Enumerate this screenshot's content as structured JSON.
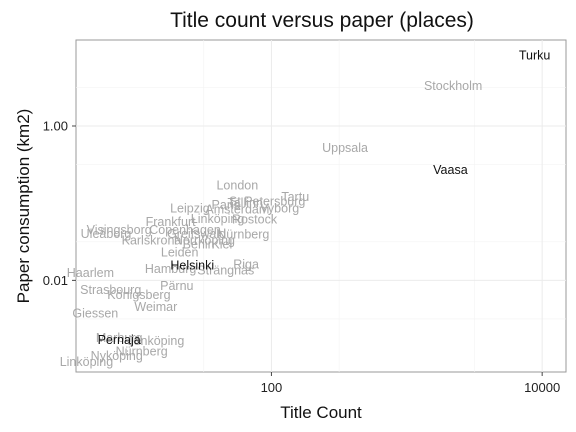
{
  "chart_data": {
    "type": "scatter",
    "title": "Title count versus paper (places)",
    "xlabel": "Title Count",
    "ylabel": "Paper consumption (km2)",
    "x_scale": "log10",
    "y_scale": "log10",
    "xlim": [
      3.6,
      15000
    ],
    "ylim": [
      0.00065,
      13
    ],
    "x_ticks": [
      {
        "value": 100,
        "label": "100"
      },
      {
        "value": 10000,
        "label": "10000"
      }
    ],
    "y_ticks": [
      {
        "value": 0.01,
        "label": "0.01"
      },
      {
        "value": 1,
        "label": "1.00"
      }
    ],
    "grid": true,
    "highlight_color": "#111111",
    "muted_color": "#a8a8a8",
    "points": [
      {
        "label": "Turku",
        "x": 8800,
        "y": 8.2,
        "highlight": true
      },
      {
        "label": "Stockholm",
        "x": 2200,
        "y": 3.3,
        "highlight": false
      },
      {
        "label": "Uppsala",
        "x": 350,
        "y": 0.52,
        "highlight": false
      },
      {
        "label": "Vaasa",
        "x": 2100,
        "y": 0.27,
        "highlight": true
      },
      {
        "label": "London",
        "x": 56,
        "y": 0.17,
        "highlight": false
      },
      {
        "label": "Tartu",
        "x": 150,
        "y": 0.12,
        "highlight": false
      },
      {
        "label": "St Petersburg",
        "x": 93,
        "y": 0.105,
        "highlight": false
      },
      {
        "label": "Tallinn",
        "x": 64,
        "y": 0.1,
        "highlight": false
      },
      {
        "label": "Leipzig",
        "x": 25,
        "y": 0.085,
        "highlight": false
      },
      {
        "label": "Paris",
        "x": 46,
        "y": 0.095,
        "highlight": false
      },
      {
        "label": "Amsterdam",
        "x": 56,
        "y": 0.083,
        "highlight": false
      },
      {
        "label": "Vyborg",
        "x": 115,
        "y": 0.085,
        "highlight": false
      },
      {
        "label": "Linköping",
        "x": 40,
        "y": 0.062,
        "highlight": false
      },
      {
        "label": "Rostock",
        "x": 75,
        "y": 0.061,
        "highlight": false
      },
      {
        "label": "Frankfurt",
        "x": 18,
        "y": 0.057,
        "highlight": false
      },
      {
        "label": "Visingsborg",
        "x": 7.5,
        "y": 0.045,
        "highlight": false
      },
      {
        "label": "Copenhagen",
        "x": 23,
        "y": 0.045,
        "highlight": false
      },
      {
        "label": "Uleåborg",
        "x": 6,
        "y": 0.04,
        "highlight": false
      },
      {
        "label": "Greifswald",
        "x": 28,
        "y": 0.04,
        "highlight": false
      },
      {
        "label": "Nürnberg",
        "x": 62,
        "y": 0.039,
        "highlight": false
      },
      {
        "label": "Karlskrona",
        "x": 13,
        "y": 0.033,
        "highlight": false
      },
      {
        "label": "Norrköping",
        "x": 32,
        "y": 0.033,
        "highlight": false
      },
      {
        "label": "Berlin",
        "x": 29,
        "y": 0.029,
        "highlight": false
      },
      {
        "label": "Kiel",
        "x": 43,
        "y": 0.029,
        "highlight": false
      },
      {
        "label": "Leiden",
        "x": 21,
        "y": 0.023,
        "highlight": false
      },
      {
        "label": "Helsinki",
        "x": 26,
        "y": 0.0155,
        "highlight": true
      },
      {
        "label": "Riga",
        "x": 65,
        "y": 0.016,
        "highlight": false
      },
      {
        "label": "Hamburg",
        "x": 18,
        "y": 0.014,
        "highlight": false
      },
      {
        "label": "Strängnäs",
        "x": 46,
        "y": 0.0135,
        "highlight": false
      },
      {
        "label": "Haarlem",
        "x": 4.6,
        "y": 0.0125,
        "highlight": false
      },
      {
        "label": "Pärnu",
        "x": 20,
        "y": 0.0085,
        "highlight": false
      },
      {
        "label": "Strasbourg",
        "x": 6.5,
        "y": 0.0075,
        "highlight": false
      },
      {
        "label": "Königsberg",
        "x": 10.5,
        "y": 0.0065,
        "highlight": false
      },
      {
        "label": "Weimar",
        "x": 14,
        "y": 0.0045,
        "highlight": false
      },
      {
        "label": "Giessen",
        "x": 5,
        "y": 0.0037,
        "highlight": false
      },
      {
        "label": "Pernaja",
        "x": 7.5,
        "y": 0.0017,
        "highlight": true
      },
      {
        "label": "Marburg",
        "x": 7.5,
        "y": 0.0018,
        "highlight": false
      },
      {
        "label": "Jönköping",
        "x": 14,
        "y": 0.00165,
        "highlight": false
      },
      {
        "label": "Nürnberg",
        "x": 11,
        "y": 0.0012,
        "highlight": false
      },
      {
        "label": "Nyköping",
        "x": 7.2,
        "y": 0.00105,
        "highlight": false
      },
      {
        "label": "Linköping",
        "x": 4.3,
        "y": 0.00088,
        "highlight": false
      }
    ]
  }
}
